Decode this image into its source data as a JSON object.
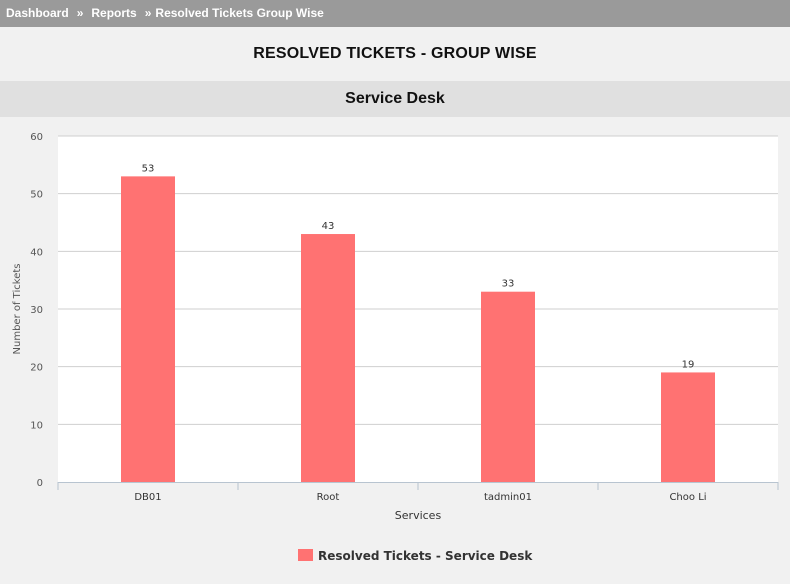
{
  "breadcrumb": {
    "items": [
      "Dashboard",
      "Reports"
    ],
    "current": "Resolved Tickets Group Wise",
    "separator": "»"
  },
  "page": {
    "title": "RESOLVED TICKETS - GROUP WISE"
  },
  "section": {
    "title": "Service Desk"
  },
  "colors": {
    "bar": "#ff7272",
    "breadcrumb_bg": "#9a9a9a",
    "band_bg": "#e0e0e0"
  },
  "chart_data": {
    "type": "bar",
    "title": "",
    "categories": [
      "DB01",
      "Root",
      "tadmin01",
      "Choo Li"
    ],
    "series": [
      {
        "name": "Resolved Tickets - Service Desk",
        "values": [
          53,
          43,
          33,
          19
        ],
        "color": "#ff7272"
      }
    ],
    "xlabel": "Services",
    "ylabel": "Number of Tickets",
    "ylim": [
      0,
      60
    ],
    "yticks": [
      0,
      10,
      20,
      30,
      40,
      50,
      60
    ],
    "grid": true,
    "data_labels": true,
    "legend_position": "bottom-center"
  }
}
